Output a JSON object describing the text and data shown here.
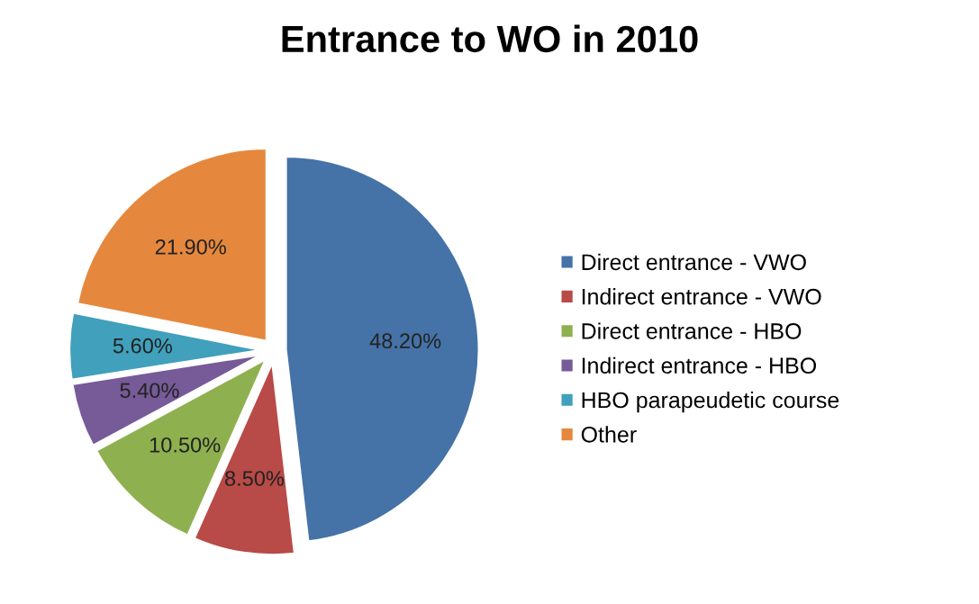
{
  "chart_data": {
    "type": "pie",
    "title": "Entrance to WO in 2010",
    "categories": [
      "Direct entrance - VWO",
      "Indirect entrance - VWO",
      "Direct entrance - HBO",
      "Indirect entrance - HBO",
      "HBO parapeudetic course",
      "Other"
    ],
    "values": [
      48.2,
      8.5,
      10.5,
      5.4,
      5.6,
      21.9
    ],
    "value_labels": [
      "48.20%",
      "8.50%",
      "10.50%",
      "5.40%",
      "5.60%",
      "21.90%"
    ],
    "colors": [
      "#4572a7",
      "#b84a47",
      "#8fb04f",
      "#775a98",
      "#41a0bb",
      "#e5883d"
    ],
    "legend": "right"
  }
}
